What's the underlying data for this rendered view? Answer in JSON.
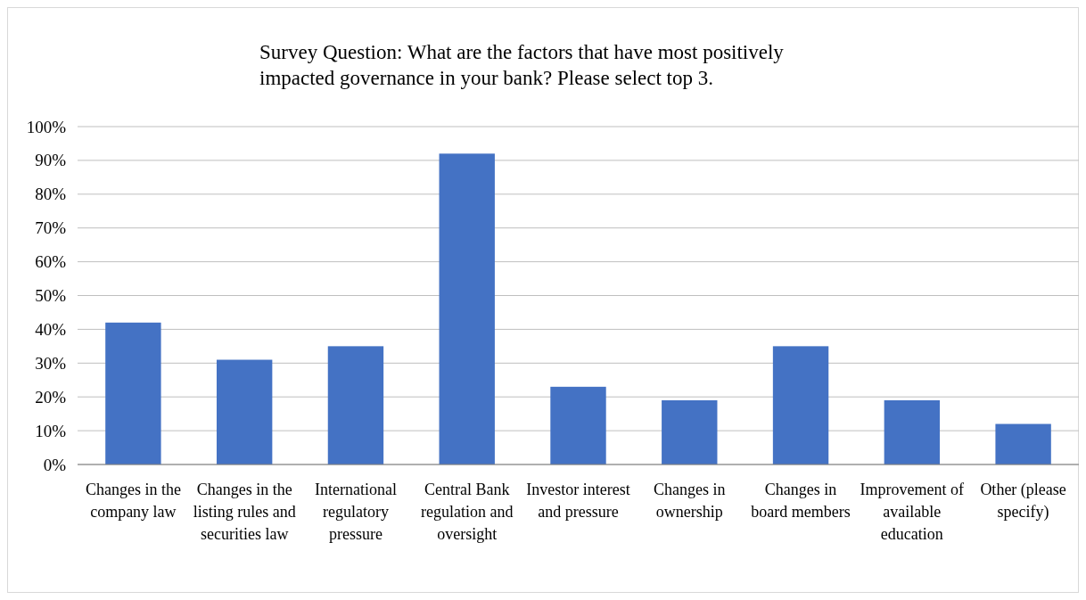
{
  "chart_data": {
    "type": "bar",
    "title": "Survey Question: What are the factors that have most positively impacted governance in your bank? Please select top 3.",
    "categories": [
      "Changes in the company law",
      "Changes in the listing rules and securities law",
      "International regulatory pressure",
      "Central Bank regulation and oversight",
      "Investor interest and pressure",
      "Changes in ownership",
      "Changes in board members",
      "Improvement of available education",
      "Other (please specify)"
    ],
    "values": [
      42,
      31,
      35,
      92,
      23,
      19,
      35,
      19,
      12
    ],
    "color": "#4472c4",
    "ylim": [
      0,
      100
    ],
    "yticks": [
      {
        "value": 0,
        "label": "0%"
      },
      {
        "value": 10,
        "label": "10%"
      },
      {
        "value": 20,
        "label": "20%"
      },
      {
        "value": 30,
        "label": "30%"
      },
      {
        "value": 40,
        "label": "40%"
      },
      {
        "value": 50,
        "label": "50%"
      },
      {
        "value": 60,
        "label": "60%"
      },
      {
        "value": 70,
        "label": "70%"
      },
      {
        "value": 80,
        "label": "80%"
      },
      {
        "value": 90,
        "label": "90%"
      },
      {
        "value": 100,
        "label": "100%"
      }
    ],
    "grid": true
  }
}
